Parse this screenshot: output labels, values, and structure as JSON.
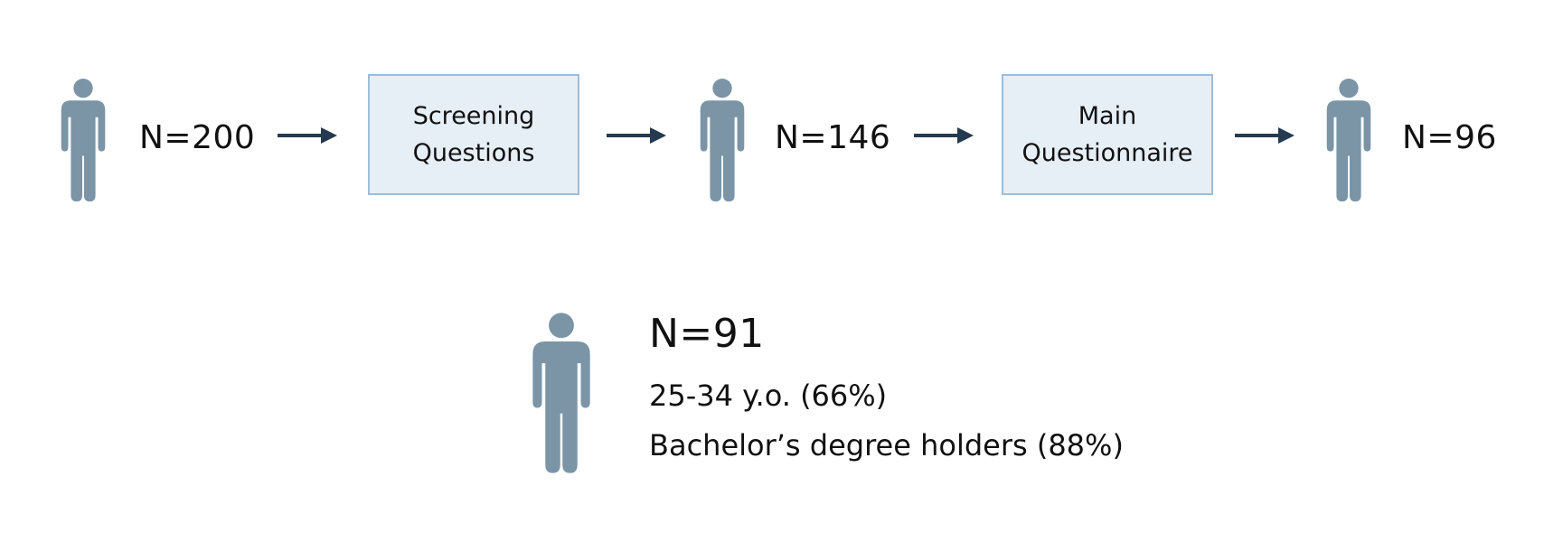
{
  "flow": {
    "stages": [
      {
        "count": "N=200"
      },
      {
        "box_lines": [
          "Screening",
          "Questions"
        ]
      },
      {
        "count": "N=146"
      },
      {
        "box_lines": [
          "Main",
          "Questionnaire"
        ]
      },
      {
        "count": "N=96"
      }
    ]
  },
  "final": {
    "count": "N=91",
    "age_line": "25-34 y.o. (66%)",
    "education_line": "Bachelor’s degree holders (88%)"
  },
  "colors": {
    "person_icon": "#7b95a6",
    "arrow": "#253a50",
    "box_fill": "#e6eef6",
    "box_border": "#9dbddb"
  },
  "icons": [
    "person-icon",
    "arrow-right-icon"
  ]
}
